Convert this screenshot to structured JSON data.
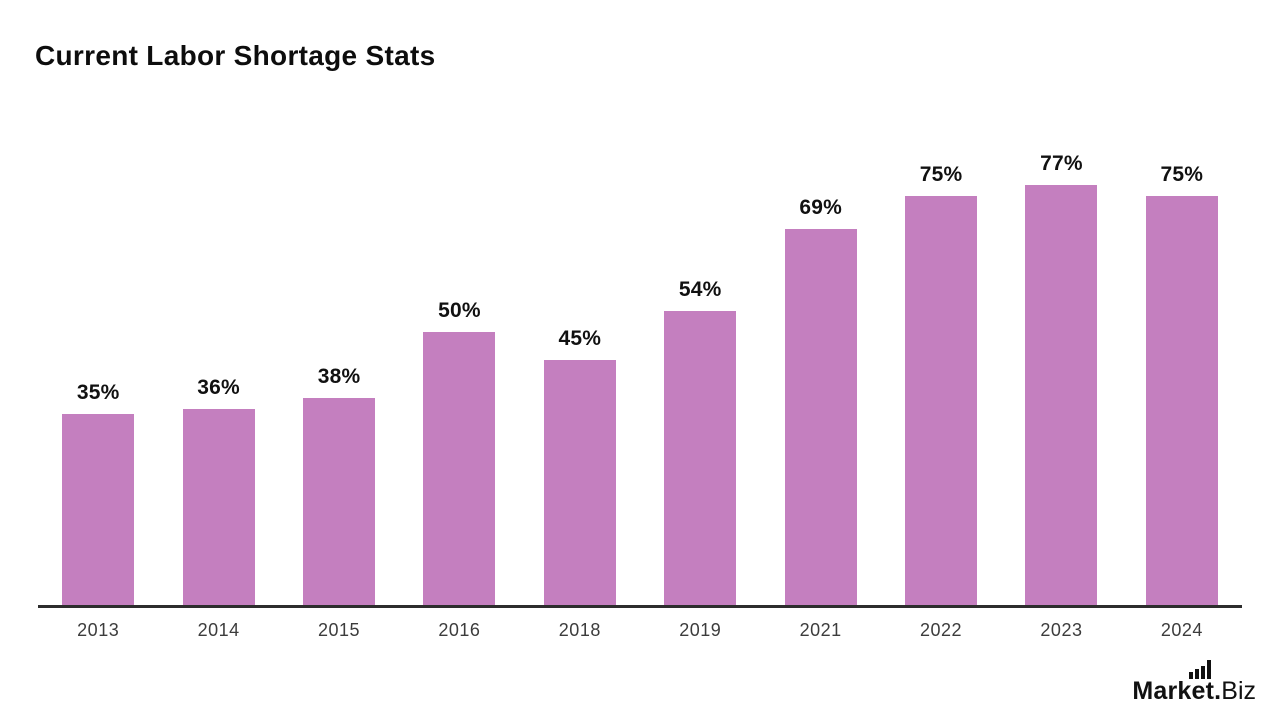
{
  "page": {
    "background": "#ffffff"
  },
  "chart_data": {
    "type": "bar",
    "title": "Current Labor Shortage Stats",
    "categories": [
      "2013",
      "2014",
      "2015",
      "2016",
      "2018",
      "2019",
      "2021",
      "2022",
      "2023",
      "2024"
    ],
    "values": [
      35,
      36,
      38,
      50,
      45,
      54,
      69,
      75,
      77,
      75
    ],
    "value_labels": [
      "35%",
      "36%",
      "38%",
      "50%",
      "45%",
      "54%",
      "69%",
      "75%",
      "77%",
      "75%"
    ],
    "xlabel": "",
    "ylabel": "",
    "ylim": [
      0,
      85
    ],
    "grid": "off",
    "legend": "none",
    "bar_color": "#c47fbf",
    "axis_line_color": "#2d2d2d",
    "value_label_color": "#111111",
    "tick_label_color": "#3c3c3c"
  },
  "branding": {
    "primary": "Market.",
    "secondary": "Biz",
    "icon": "bar-chart-icon",
    "color": "#111111"
  }
}
